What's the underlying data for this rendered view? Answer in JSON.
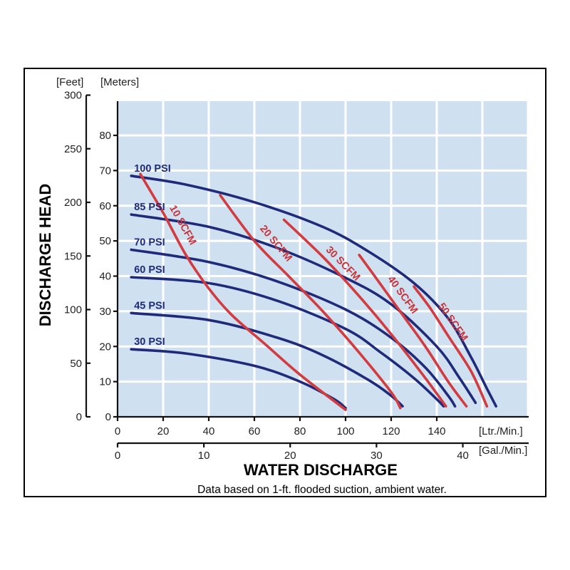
{
  "chart_data": {
    "type": "line",
    "y_title": "DISCHARGE HEAD",
    "x_title": "WATER DISCHARGE",
    "note": "Data based on 1-ft. flooded suction, ambient water.",
    "y_left_unit": "[Feet]",
    "y_right_unit": "[Meters]",
    "x_top_unit": "[Ltr./Min.]",
    "x_bottom_unit": "[Gal./Min.]",
    "feet_ticks": [
      "0",
      "50",
      "100",
      "150",
      "200",
      "250",
      "300"
    ],
    "meter_ticks": [
      "0",
      "10",
      "20",
      "30",
      "40",
      "50",
      "60",
      "70",
      "80"
    ],
    "lpm_ticks": [
      "0",
      "20",
      "40",
      "60",
      "80",
      "100",
      "120",
      "140"
    ],
    "gpm_ticks": [
      "0",
      "10",
      "20",
      "30",
      "40"
    ],
    "xlim_lpm": [
      0,
      180
    ],
    "ylim_m": [
      0,
      90
    ],
    "grid": true,
    "background_color": "#cfe0f0",
    "pressure_color": "#1f2a7a",
    "air_color": "#d23b3f",
    "pressure_series": [
      {
        "name": "100 PSI",
        "points": [
          [
            6,
            68.5
          ],
          [
            30,
            66
          ],
          [
            60,
            61
          ],
          [
            90,
            54
          ],
          [
            110,
            47
          ],
          [
            130,
            38
          ],
          [
            145,
            28
          ],
          [
            155,
            17
          ],
          [
            162,
            8
          ],
          [
            166,
            3
          ]
        ]
      },
      {
        "name": "85 PSI",
        "points": [
          [
            6,
            57.5
          ],
          [
            40,
            54
          ],
          [
            70,
            48
          ],
          [
            100,
            39.5
          ],
          [
            120,
            32
          ],
          [
            140,
            20
          ],
          [
            150,
            11
          ],
          [
            157,
            4
          ]
        ]
      },
      {
        "name": "70 PSI",
        "points": [
          [
            6,
            47.5
          ],
          [
            40,
            44
          ],
          [
            70,
            38.5
          ],
          [
            100,
            30.5
          ],
          [
            120,
            22.5
          ],
          [
            135,
            14
          ],
          [
            145,
            6
          ],
          [
            148,
            3
          ]
        ]
      },
      {
        "name": "60 PSI",
        "points": [
          [
            6,
            39.7
          ],
          [
            40,
            38
          ],
          [
            70,
            33
          ],
          [
            100,
            25
          ],
          [
            115,
            18.5
          ],
          [
            130,
            11
          ],
          [
            140,
            5
          ],
          [
            143,
            3
          ]
        ]
      },
      {
        "name": "45 PSI",
        "points": [
          [
            6,
            29.5
          ],
          [
            40,
            27.5
          ],
          [
            70,
            22.5
          ],
          [
            90,
            17.5
          ],
          [
            110,
            10.5
          ],
          [
            120,
            6
          ],
          [
            125,
            3
          ]
        ]
      },
      {
        "name": "30 PSI",
        "points": [
          [
            6,
            19.2
          ],
          [
            30,
            18
          ],
          [
            60,
            14.5
          ],
          [
            80,
            10
          ],
          [
            95,
            5
          ],
          [
            100,
            2.5
          ]
        ]
      }
    ],
    "air_series": [
      {
        "name": "10 SCFM",
        "points": [
          [
            10,
            69
          ],
          [
            20,
            58
          ],
          [
            30,
            46
          ],
          [
            40,
            36.5
          ],
          [
            50,
            29
          ],
          [
            65,
            20.5
          ],
          [
            80,
            12
          ],
          [
            100,
            2
          ]
        ]
      },
      {
        "name": "20 SCFM",
        "points": [
          [
            45,
            63
          ],
          [
            60,
            50
          ],
          [
            75,
            40
          ],
          [
            90,
            30
          ],
          [
            105,
            19
          ],
          [
            120,
            7
          ],
          [
            124,
            2.5
          ]
        ]
      },
      {
        "name": "30 SCFM",
        "points": [
          [
            73,
            56
          ],
          [
            90,
            45.5
          ],
          [
            105,
            35
          ],
          [
            120,
            23.5
          ],
          [
            135,
            11
          ],
          [
            144,
            3
          ]
        ]
      },
      {
        "name": "40 SCFM",
        "points": [
          [
            106,
            46
          ],
          [
            115,
            38
          ],
          [
            125,
            29
          ],
          [
            135,
            20
          ],
          [
            145,
            10
          ],
          [
            153,
            3
          ]
        ]
      },
      {
        "name": "50 SCFM",
        "points": [
          [
            130,
            37
          ],
          [
            137,
            31
          ],
          [
            145,
            23
          ],
          [
            155,
            13
          ],
          [
            162,
            3
          ]
        ]
      }
    ]
  }
}
